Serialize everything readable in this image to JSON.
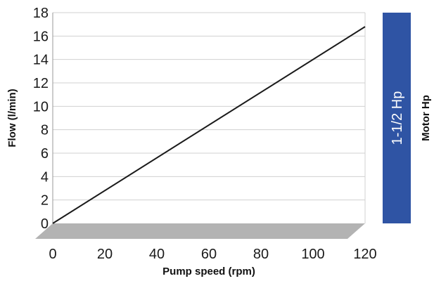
{
  "chart_data": {
    "type": "line",
    "xlabel": "Pump speed (rpm)",
    "ylabel": "Flow (l/min)",
    "xlim": [
      0,
      120
    ],
    "ylim": [
      0,
      18
    ],
    "x_ticks": [
      0,
      20,
      40,
      60,
      80,
      100,
      120
    ],
    "y_ticks": [
      0,
      2,
      4,
      6,
      8,
      10,
      12,
      14,
      16,
      18
    ],
    "grid": "horizontal",
    "series": [
      {
        "x": [
          0,
          120
        ],
        "y": [
          0,
          16.8
        ],
        "color": "#1a1a1a"
      }
    ],
    "floor_color": "#b3b3b3",
    "motor": {
      "title": "Motor Hp",
      "label": "1-1/2 Hp",
      "color": "#2f54a4"
    }
  }
}
